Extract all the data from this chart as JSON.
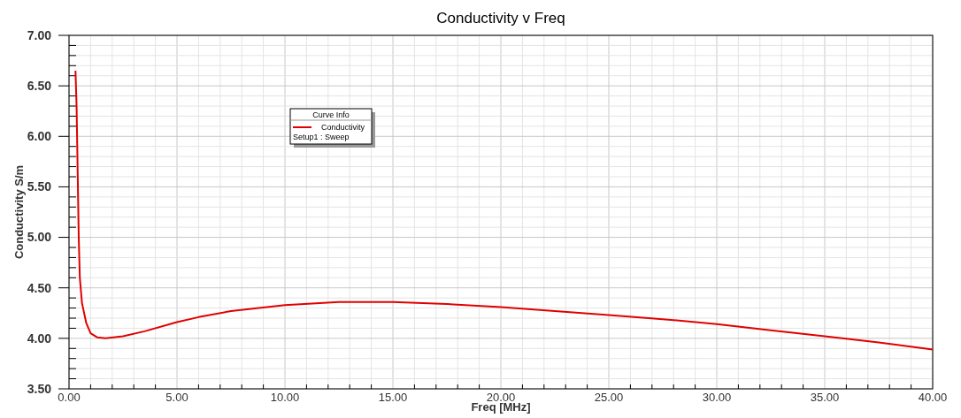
{
  "chart_data": {
    "type": "line",
    "title": "Conductivity v Freq",
    "xlabel": "Freq [MHz]",
    "ylabel": "Conductivity S/m",
    "legend_title": "Curve Info",
    "legend": "top left",
    "grid": true,
    "marker": "none",
    "line_style": "solid",
    "annotations": [
      "Setup1 : Sweep"
    ],
    "xlim": [
      0,
      40
    ],
    "ylim": [
      3.5,
      7
    ],
    "xticks": [
      {
        "value": 0,
        "label": "0.00"
      },
      {
        "value": 1,
        "label": null
      },
      {
        "value": 2,
        "label": null
      },
      {
        "value": 3,
        "label": null
      },
      {
        "value": 4,
        "label": null
      },
      {
        "value": 5,
        "label": "5.00"
      },
      {
        "value": 6,
        "label": null
      },
      {
        "value": 7,
        "label": null
      },
      {
        "value": 8,
        "label": null
      },
      {
        "value": 9,
        "label": null
      },
      {
        "value": 10,
        "label": "10.00"
      },
      {
        "value": 11,
        "label": null
      },
      {
        "value": 12,
        "label": null
      },
      {
        "value": 13,
        "label": null
      },
      {
        "value": 14,
        "label": null
      },
      {
        "value": 15,
        "label": "15.00"
      },
      {
        "value": 16,
        "label": null
      },
      {
        "value": 17,
        "label": null
      },
      {
        "value": 18,
        "label": null
      },
      {
        "value": 19,
        "label": null
      },
      {
        "value": 20,
        "label": "20.00"
      },
      {
        "value": 21,
        "label": null
      },
      {
        "value": 22,
        "label": null
      },
      {
        "value": 23,
        "label": null
      },
      {
        "value": 24,
        "label": null
      },
      {
        "value": 25,
        "label": "25.00"
      },
      {
        "value": 26,
        "label": null
      },
      {
        "value": 27,
        "label": null
      },
      {
        "value": 28,
        "label": null
      },
      {
        "value": 29,
        "label": null
      },
      {
        "value": 30,
        "label": "30.00"
      },
      {
        "value": 31,
        "label": null
      },
      {
        "value": 32,
        "label": null
      },
      {
        "value": 33,
        "label": null
      },
      {
        "value": 34,
        "label": null
      },
      {
        "value": 35,
        "label": "35.00"
      },
      {
        "value": 36,
        "label": null
      },
      {
        "value": 37,
        "label": null
      },
      {
        "value": 38,
        "label": null
      },
      {
        "value": 39,
        "label": null
      },
      {
        "value": 40,
        "label": "40.00"
      }
    ],
    "yticks": [
      {
        "value": 3.5,
        "label": "3.50"
      },
      {
        "value": 3.6,
        "label": null
      },
      {
        "value": 3.7,
        "label": null
      },
      {
        "value": 3.8,
        "label": null
      },
      {
        "value": 3.9,
        "label": null
      },
      {
        "value": 4,
        "label": "4.00"
      },
      {
        "value": 4.1,
        "label": null
      },
      {
        "value": 4.2,
        "label": null
      },
      {
        "value": 4.3,
        "label": null
      },
      {
        "value": 4.4,
        "label": null
      },
      {
        "value": 4.5,
        "label": "4.50"
      },
      {
        "value": 4.6,
        "label": null
      },
      {
        "value": 4.7,
        "label": null
      },
      {
        "value": 4.8,
        "label": null
      },
      {
        "value": 4.9,
        "label": null
      },
      {
        "value": 5,
        "label": "5.00"
      },
      {
        "value": 5.1,
        "label": null
      },
      {
        "value": 5.2,
        "label": null
      },
      {
        "value": 5.3,
        "label": null
      },
      {
        "value": 5.4,
        "label": null
      },
      {
        "value": 5.5,
        "label": "5.50"
      },
      {
        "value": 5.6,
        "label": null
      },
      {
        "value": 5.7,
        "label": null
      },
      {
        "value": 5.8,
        "label": null
      },
      {
        "value": 5.9,
        "label": null
      },
      {
        "value": 6,
        "label": "6.00"
      },
      {
        "value": 6.1,
        "label": null
      },
      {
        "value": 6.2,
        "label": null
      },
      {
        "value": 6.3,
        "label": null
      },
      {
        "value": 6.4,
        "label": null
      },
      {
        "value": 6.5,
        "label": "6.50"
      },
      {
        "value": 6.6,
        "label": null
      },
      {
        "value": 6.7,
        "label": null
      },
      {
        "value": 6.8,
        "label": null
      },
      {
        "value": 6.9,
        "label": null
      },
      {
        "value": 7,
        "label": "7.00"
      }
    ],
    "series": [
      {
        "name": "Conductivity",
        "color": "#e00000",
        "x": [
          0.3,
          0.35,
          0.4,
          0.45,
          0.5,
          0.6,
          0.8,
          1.0,
          1.3,
          1.7,
          2.5,
          3.5,
          5,
          6,
          7.5,
          10,
          12.5,
          15,
          17.5,
          20,
          22.5,
          25,
          27.5,
          30,
          32.5,
          35,
          37.5,
          40
        ],
        "values": [
          6.65,
          6.3,
          5.65,
          5.0,
          4.6,
          4.35,
          4.15,
          4.05,
          4.01,
          4.0,
          4.02,
          4.07,
          4.16,
          4.21,
          4.27,
          4.33,
          4.36,
          4.36,
          4.34,
          4.31,
          4.27,
          4.23,
          4.19,
          4.14,
          4.08,
          4.02,
          3.96,
          3.89
        ]
      }
    ]
  }
}
